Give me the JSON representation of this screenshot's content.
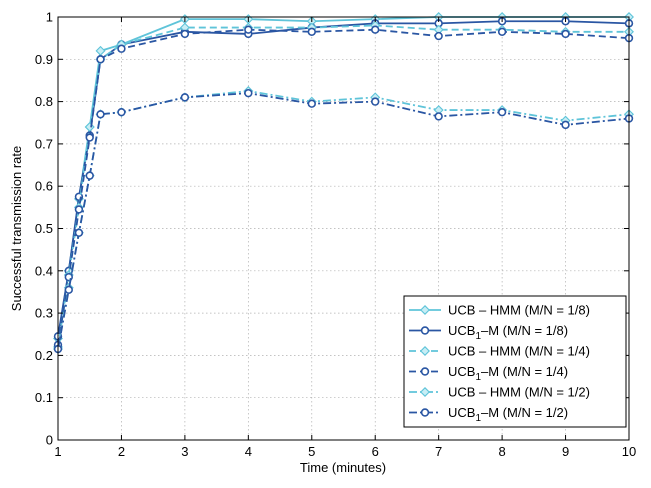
{
  "chart_data": {
    "type": "line",
    "title": "",
    "xlabel": "Time (minutes)",
    "ylabel": "Successful transmission rate",
    "xlim": [
      1,
      10
    ],
    "ylim": [
      0,
      1
    ],
    "xticks": [
      1,
      2,
      3,
      4,
      5,
      6,
      7,
      8,
      9,
      10
    ],
    "yticks": [
      0,
      0.1,
      0.2,
      0.3,
      0.4,
      0.5,
      0.6,
      0.7,
      0.8,
      0.9,
      1
    ],
    "ytick_labels": [
      "0",
      "0.1",
      "0.2",
      "0.3",
      "0.4",
      "0.5",
      "0.6",
      "0.7",
      "0.8",
      "0.9",
      "1"
    ],
    "grid": true,
    "legend_position": "bottom-right",
    "x": [
      1,
      1.17,
      1.33,
      1.5,
      1.67,
      2,
      3,
      4,
      5,
      6,
      7,
      8,
      9,
      10
    ],
    "series": [
      {
        "name": "UCB – HMM (M/N = 1/8)",
        "legend_main": "UCB – HMM (M/N = 1/8)",
        "legend_sub": "",
        "legend_tail": "",
        "color": "#5fc4d9",
        "dash": "solid",
        "marker": "diamond",
        "values": [
          0.24,
          0.4,
          0.57,
          0.74,
          0.92,
          0.935,
          0.995,
          0.995,
          0.99,
          0.995,
          1.0,
          1.0,
          1.0,
          1.0
        ]
      },
      {
        "name": "UCB1–M (M/N = 1/8)",
        "legend_main": "UCB",
        "legend_sub": "1",
        "legend_tail": "–M (M/N = 1/8)",
        "color": "#2a56a3",
        "dash": "solid",
        "marker": "circle",
        "values": [
          0.245,
          0.4,
          0.575,
          0.72,
          0.9,
          0.935,
          0.965,
          0.96,
          0.975,
          0.985,
          0.985,
          0.99,
          0.99,
          0.985
        ]
      },
      {
        "name": "UCB – HMM (M/N = 1/4)",
        "legend_main": "UCB – HMM (M/N = 1/4)",
        "legend_sub": "",
        "legend_tail": "",
        "color": "#5fc4d9",
        "dash": "dashed",
        "marker": "diamond",
        "values": [
          0.22,
          0.39,
          0.55,
          0.74,
          0.9,
          0.935,
          0.975,
          0.975,
          0.975,
          0.98,
          0.97,
          0.97,
          0.965,
          0.965
        ]
      },
      {
        "name": "UCB1–M (M/N = 1/4)",
        "legend_main": "UCB",
        "legend_sub": "1",
        "legend_tail": "–M (M/N = 1/4)",
        "color": "#2a56a3",
        "dash": "dashed",
        "marker": "circle",
        "values": [
          0.225,
          0.385,
          0.545,
          0.715,
          0.9,
          0.925,
          0.96,
          0.97,
          0.965,
          0.97,
          0.955,
          0.965,
          0.96,
          0.95
        ]
      },
      {
        "name": "UCB – HMM (M/N = 1/2)",
        "legend_main": "UCB – HMM (M/N = 1/2)",
        "legend_sub": "",
        "legend_tail": "",
        "color": "#5fc4d9",
        "dash": "dashdot",
        "marker": "diamond",
        "values": [
          0.215,
          0.36,
          0.49,
          0.625,
          0.77,
          0.775,
          0.81,
          0.825,
          0.8,
          0.81,
          0.78,
          0.78,
          0.755,
          0.77
        ]
      },
      {
        "name": "UCB1–M (M/N = 1/2)",
        "legend_main": "UCB",
        "legend_sub": "1",
        "legend_tail": "–M (M/N = 1/2)",
        "color": "#2a56a3",
        "dash": "dashdot",
        "marker": "circle",
        "values": [
          0.215,
          0.355,
          0.49,
          0.625,
          0.77,
          0.775,
          0.81,
          0.82,
          0.795,
          0.8,
          0.765,
          0.775,
          0.745,
          0.76
        ]
      }
    ]
  }
}
